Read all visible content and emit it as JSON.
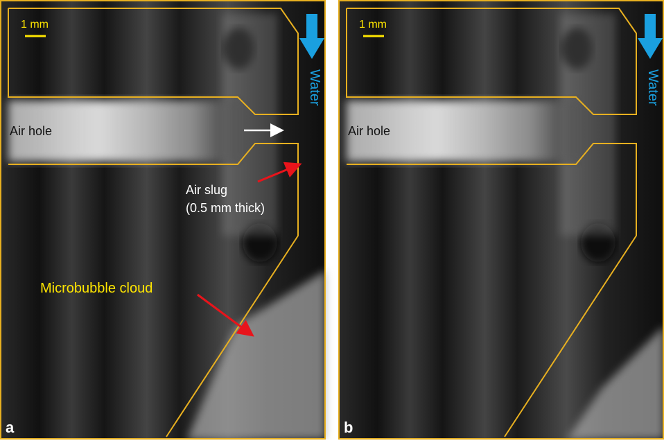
{
  "panels": [
    {
      "label": "a",
      "scale_bar": "1 mm",
      "flow": "Water",
      "annotations": {
        "air_hole": "Air hole",
        "air_slug": "Air slug",
        "thickness": "(0.5 mm thick)",
        "cloud": "Microbubble cloud"
      }
    },
    {
      "label": "b",
      "scale_bar": "1 mm",
      "flow": "Water",
      "annotations": {
        "air_hole": "Air hole"
      }
    }
  ]
}
